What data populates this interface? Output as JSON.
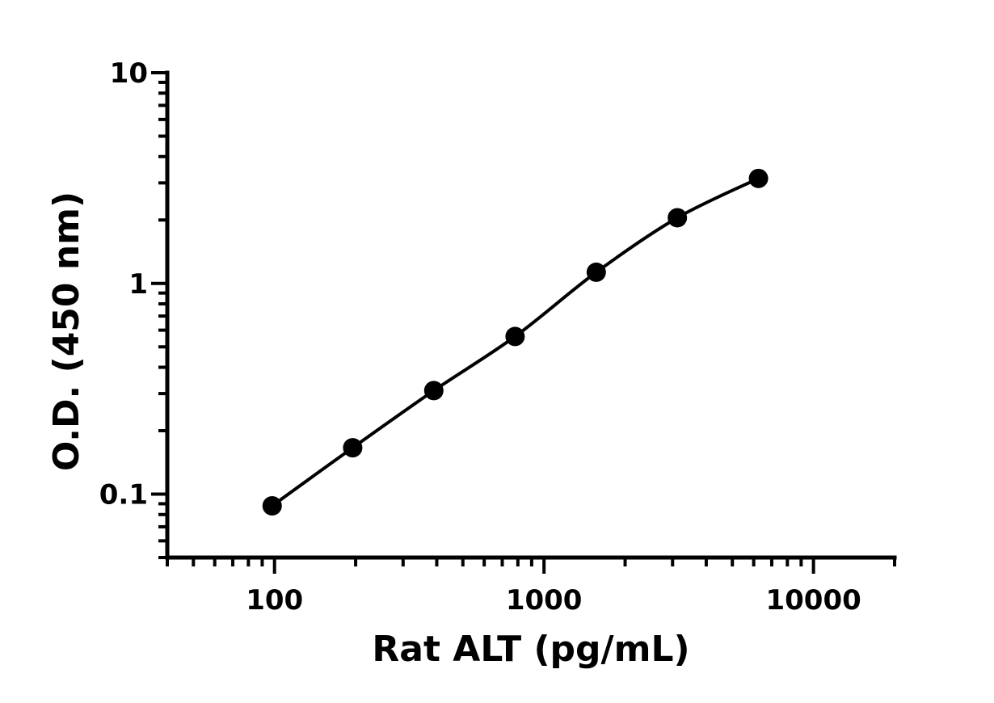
{
  "chart_data": {
    "type": "scatter",
    "title": "",
    "xlabel": "Rat ALT (pg/mL)",
    "ylabel": "O.D. (450 nm)",
    "x_scale": "log",
    "y_scale": "log",
    "xlim": [
      40,
      20000
    ],
    "ylim": [
      0.05,
      10
    ],
    "x_ticks": [
      100,
      1000,
      10000
    ],
    "x_tick_labels": [
      "100",
      "1000",
      "10000"
    ],
    "y_ticks": [
      0.1,
      1,
      10
    ],
    "y_tick_labels": [
      "0.1",
      "1",
      "10"
    ],
    "grid": false,
    "legend": "none",
    "series": [
      {
        "x": [
          98,
          195,
          390,
          781,
          1563,
          3125,
          6250
        ],
        "y": [
          0.088,
          0.166,
          0.31,
          0.56,
          1.13,
          2.05,
          3.15
        ],
        "color": "#000000",
        "show_fit_curve": true
      }
    ]
  }
}
